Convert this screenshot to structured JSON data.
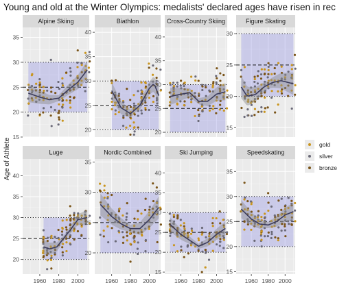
{
  "title": "Young and old at the Winter Olympics: medalists' declared ages have risen in rec",
  "chart_data": {
    "type": "scatter",
    "ylabel": "Age of Athlete",
    "xlabel": "",
    "x_ticks": [
      1960,
      1980,
      2000
    ],
    "xlim": [
      1942,
      2012
    ],
    "legend": {
      "position": "right",
      "entries": [
        "gold",
        "silver",
        "bronze"
      ]
    },
    "colors": {
      "gold": "#c9951e",
      "silver": "#6b6a78",
      "bronze": "#7a5418",
      "smooth": "#3b3b5c",
      "band": "#7d7de0",
      "panel_bg": "#ebebeb",
      "strip_bg": "#d9d9d9"
    },
    "panels": [
      {
        "name": "Alpine Skiing",
        "row": 0,
        "col": 0,
        "ylim": [
          15,
          37
        ],
        "yticks": [
          15,
          20,
          25,
          30,
          35
        ],
        "band": [
          20,
          30
        ],
        "dashed": 25,
        "xrange": [
          1948,
          2010
        ],
        "smooth": [
          [
            1948,
            23.8
          ],
          [
            1960,
            23
          ],
          [
            1970,
            22.5
          ],
          [
            1980,
            22.8
          ],
          [
            1990,
            24.5
          ],
          [
            2000,
            26
          ],
          [
            2010,
            28.5
          ]
        ],
        "spread": 4.0
      },
      {
        "name": "Biathlon",
        "row": 0,
        "col": 1,
        "ylim": [
          18.5,
          41
        ],
        "yticks": [
          20,
          25,
          30,
          35,
          40
        ],
        "band": [
          20,
          30
        ],
        "dashed": 25,
        "xrange": [
          1960,
          2010
        ],
        "smooth": [
          [
            1960,
            28
          ],
          [
            1970,
            24.5
          ],
          [
            1980,
            23.3
          ],
          [
            1990,
            25
          ],
          [
            2000,
            28.5
          ],
          [
            2005,
            29.5
          ],
          [
            2010,
            27
          ]
        ],
        "spread": 3.5
      },
      {
        "name": "Cross-Country Skiing",
        "row": 0,
        "col": 2,
        "ylim": [
          19,
          42
        ],
        "yticks": [
          20,
          25,
          30,
          35,
          40
        ],
        "band": [
          20,
          30
        ],
        "dashed": 25,
        "xrange": [
          1948,
          2010
        ],
        "smooth": [
          [
            1948,
            27.5
          ],
          [
            1960,
            28
          ],
          [
            1970,
            28.3
          ],
          [
            1980,
            26.5
          ],
          [
            1990,
            26.5
          ],
          [
            2000,
            28
          ],
          [
            2010,
            28.5
          ]
        ],
        "spread": 3.5
      },
      {
        "name": "Figure Skating",
        "row": 0,
        "col": 3,
        "ylim": [
          13.5,
          31
        ],
        "yticks": [
          15,
          20,
          25,
          30
        ],
        "band": [
          20,
          30
        ],
        "dashed": 25,
        "xrange": [
          1948,
          2010
        ],
        "smooth": [
          [
            1948,
            21.5
          ],
          [
            1955,
            20
          ],
          [
            1965,
            20.3
          ],
          [
            1975,
            21.5
          ],
          [
            1985,
            22.2
          ],
          [
            1995,
            22.5
          ],
          [
            2010,
            22
          ]
        ],
        "spread": 3.0
      },
      {
        "name": "Luge",
        "row": 1,
        "col": 0,
        "ylim": [
          16.5,
          44
        ],
        "yticks": [
          20,
          25,
          30,
          35,
          40
        ],
        "band": [
          20,
          30
        ],
        "dashed": 25,
        "xrange": [
          1964,
          2010
        ],
        "smooth": [
          [
            1964,
            23
          ],
          [
            1970,
            22.5
          ],
          [
            1978,
            23
          ],
          [
            1985,
            25
          ],
          [
            1992,
            27
          ],
          [
            2000,
            29.5
          ],
          [
            2010,
            30
          ]
        ],
        "spread": 3.5
      },
      {
        "name": "Nordic Combined",
        "row": 1,
        "col": 1,
        "ylim": [
          16.5,
          35.5
        ],
        "yticks": [
          20,
          25,
          30,
          35
        ],
        "band": [
          20,
          30
        ],
        "dashed": 25,
        "xrange": [
          1948,
          2010
        ],
        "smooth": [
          [
            1948,
            28
          ],
          [
            1960,
            26
          ],
          [
            1970,
            24.8
          ],
          [
            1980,
            24
          ],
          [
            1990,
            24
          ],
          [
            2000,
            25.5
          ],
          [
            2010,
            27.5
          ]
        ],
        "spread": 3.5
      },
      {
        "name": "Ski Jumping",
        "row": 1,
        "col": 2,
        "ylim": [
          14.5,
          43.5
        ],
        "yticks": [
          15,
          20,
          25,
          30,
          35,
          40
        ],
        "band": [
          20,
          30
        ],
        "dashed": 25,
        "xrange": [
          1948,
          2010
        ],
        "smooth": [
          [
            1948,
            27
          ],
          [
            1960,
            24.5
          ],
          [
            1970,
            23
          ],
          [
            1980,
            21.5
          ],
          [
            1990,
            22.5
          ],
          [
            2000,
            24.5
          ],
          [
            2010,
            26
          ]
        ],
        "spread": 3.5
      },
      {
        "name": "Speedskating",
        "row": 1,
        "col": 3,
        "ylim": [
          14.5,
          37.5
        ],
        "yticks": [
          15,
          20,
          25,
          30,
          35
        ],
        "band": [
          20,
          30
        ],
        "dashed": 25,
        "xrange": [
          1948,
          2010
        ],
        "smooth": [
          [
            1948,
            27.5
          ],
          [
            1960,
            25.5
          ],
          [
            1970,
            24.5
          ],
          [
            1980,
            24.3
          ],
          [
            1990,
            25
          ],
          [
            2000,
            26.3
          ],
          [
            2010,
            27
          ]
        ],
        "spread": 3.5
      }
    ]
  }
}
